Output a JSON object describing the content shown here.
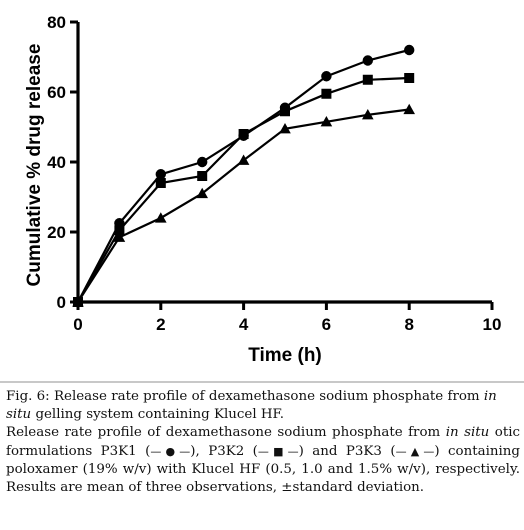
{
  "chart_data": {
    "type": "line",
    "xlabel": "Time (h)",
    "ylabel": "Cumulative % drug release",
    "xlim": [
      0,
      10
    ],
    "ylim": [
      0,
      80
    ],
    "x_ticks": [
      "0",
      "2",
      "4",
      "6",
      "8",
      "10"
    ],
    "y_ticks": [
      "0",
      "20",
      "40",
      "60",
      "80"
    ],
    "grid": false,
    "legend": "none",
    "series": [
      {
        "name": "P3K1",
        "marker": "circle",
        "x": [
          0,
          1,
          2,
          3,
          4,
          5,
          6,
          7,
          8
        ],
        "y": [
          0,
          22.5,
          36.5,
          40,
          47.5,
          55.5,
          64.5,
          69,
          72
        ]
      },
      {
        "name": "P3K2",
        "marker": "square",
        "x": [
          0,
          1,
          2,
          3,
          4,
          5,
          6,
          7,
          8
        ],
        "y": [
          0,
          20.5,
          34,
          36,
          48,
          54.5,
          59.5,
          63.5,
          64
        ]
      },
      {
        "name": "P3K3",
        "marker": "triangle",
        "x": [
          0,
          1,
          2,
          3,
          4,
          5,
          6,
          7,
          8
        ],
        "y": [
          0,
          18.5,
          24,
          31,
          40.5,
          49.5,
          51.5,
          53.5,
          55
        ]
      }
    ]
  },
  "caption": {
    "fig_label": "Fig. 6:",
    "title_part1": "Release rate profile of dexamethasone sodium phosphate from",
    "title_italic": "in situ",
    "title_part2": "gelling system containing Klucel HF.",
    "desc_part1": "Release rate profile of dexamethasone sodium phosphate from",
    "desc_italic": "in situ",
    "desc_part2": "otic formulations P3K1 (",
    "desc_part3": "), P3K2 (",
    "desc_part4": ") and P3K3 (",
    "desc_part5": ") containing poloxamer (19% w/v) with Klucel HF (0.5, 1.0 and 1.5% w/v), respectively. Results are mean of three observations, ±standard deviation."
  }
}
